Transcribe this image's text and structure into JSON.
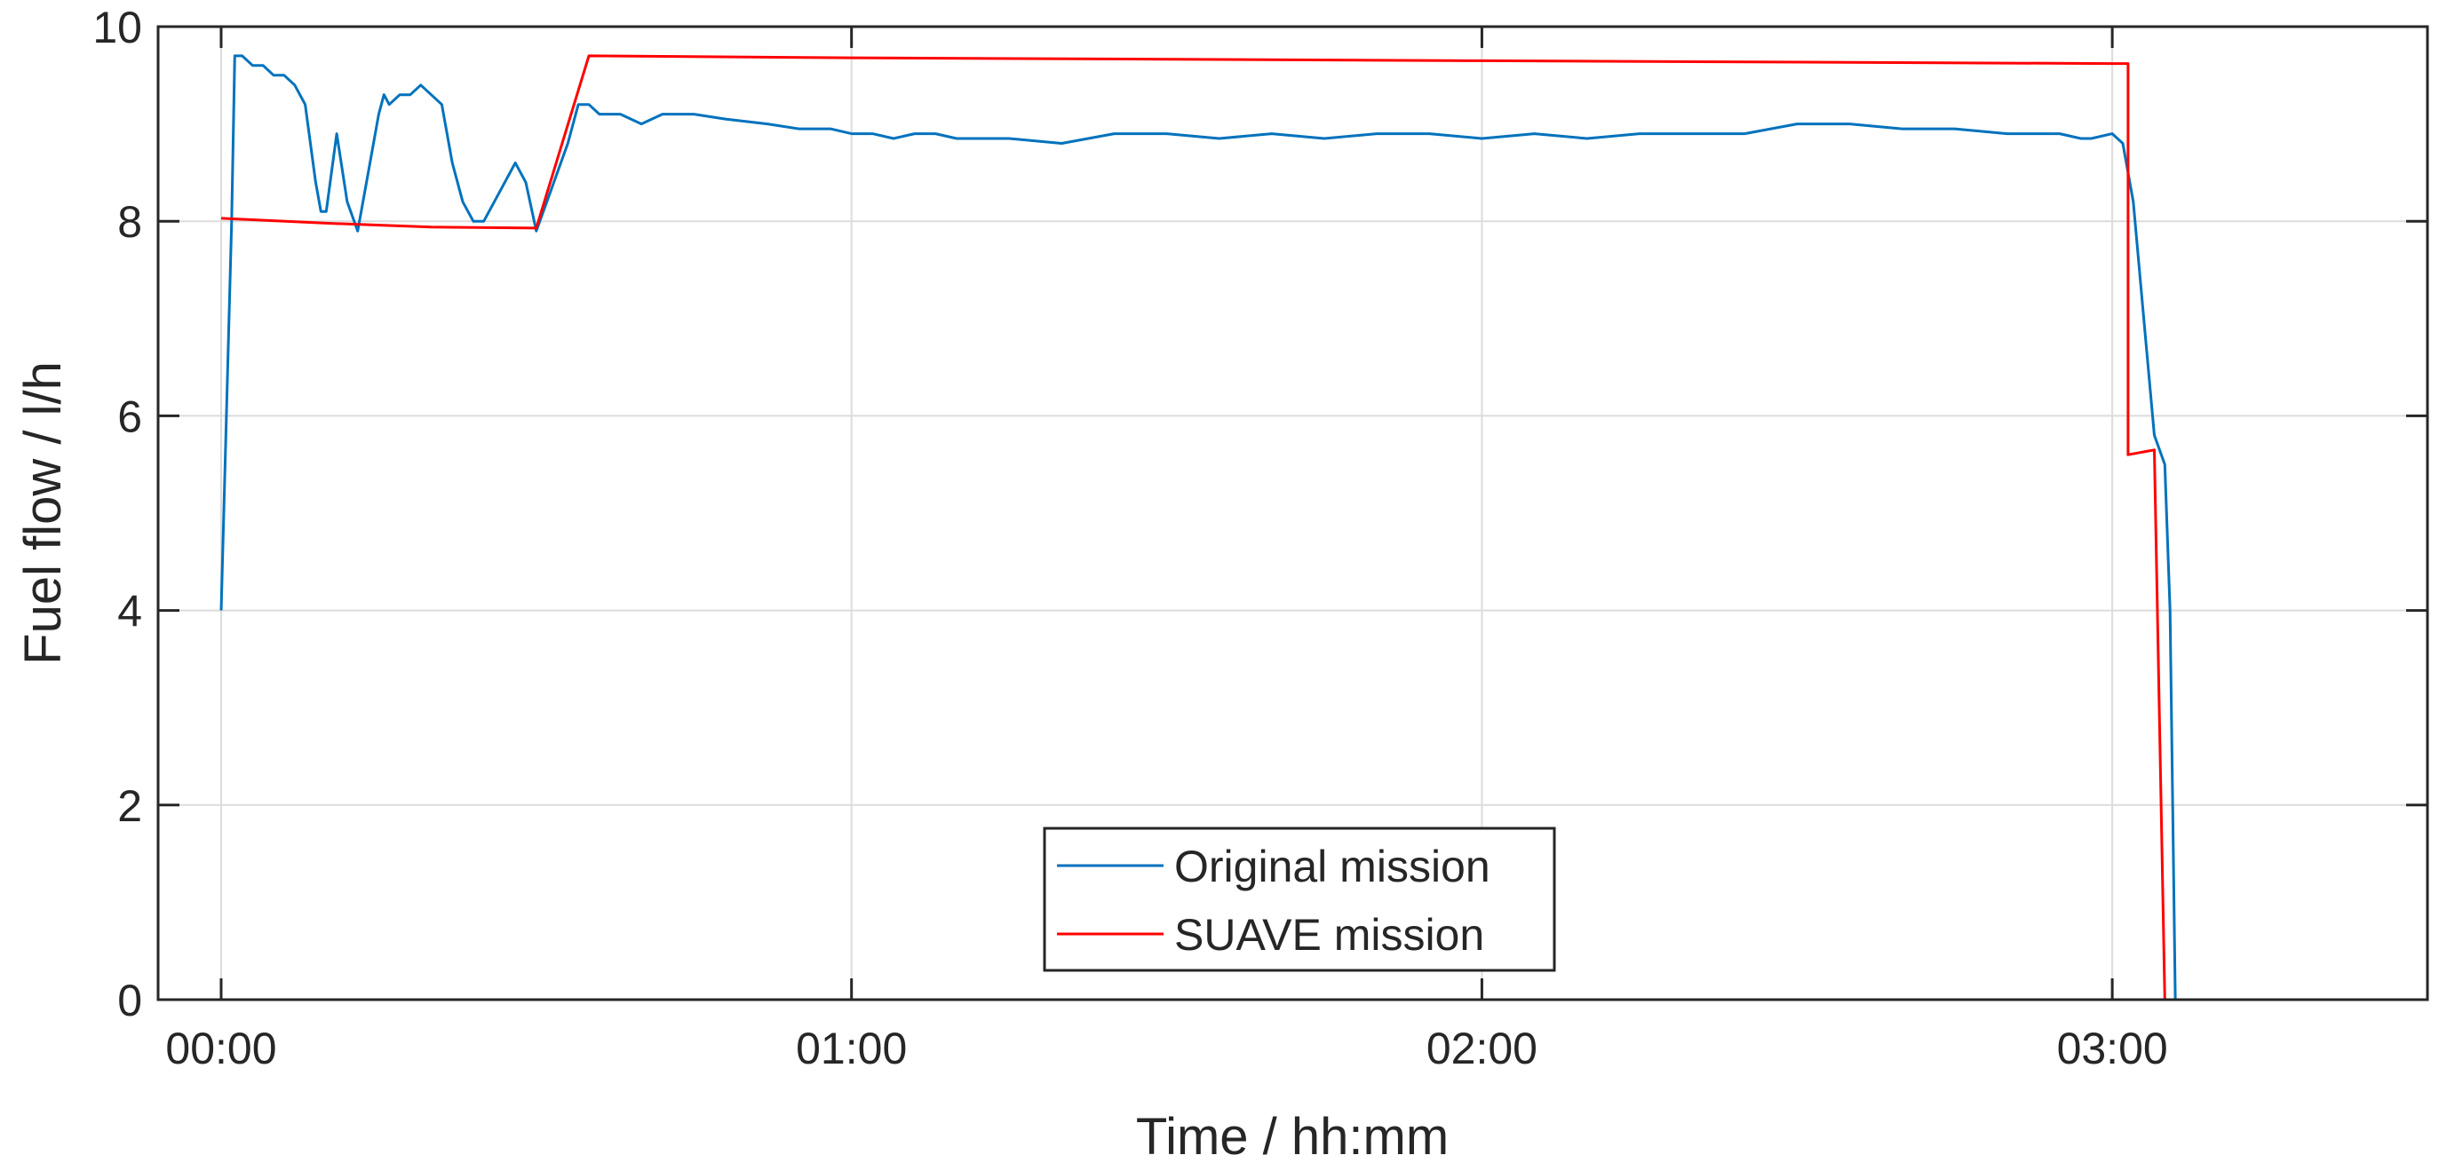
{
  "chart_data": {
    "type": "line",
    "title": "",
    "xlabel": "Time / hh:mm",
    "ylabel": "Fuel flow / l/h",
    "xlim": [
      -6,
      210
    ],
    "ylim": [
      0,
      10
    ],
    "x_unit": "minutes",
    "x_ticks": [
      {
        "value": 0,
        "label": "00:00"
      },
      {
        "value": 60,
        "label": "01:00"
      },
      {
        "value": 120,
        "label": "02:00"
      },
      {
        "value": 180,
        "label": "03:00"
      }
    ],
    "y_ticks": [
      {
        "value": 0,
        "label": "0"
      },
      {
        "value": 2,
        "label": "2"
      },
      {
        "value": 4,
        "label": "4"
      },
      {
        "value": 6,
        "label": "6"
      },
      {
        "value": 8,
        "label": "8"
      },
      {
        "value": 10,
        "label": "10"
      }
    ],
    "grid": true,
    "legend_position": "bottom-center",
    "series": [
      {
        "name": "Original mission",
        "color": "#0072bd",
        "x": [
          0,
          1,
          1.3,
          2,
          3,
          4,
          5,
          6,
          7,
          8,
          9,
          9.5,
          10,
          11,
          12,
          13,
          14,
          15,
          15.5,
          16,
          17,
          18,
          19,
          20,
          21,
          22,
          23,
          24,
          25,
          25.5,
          26,
          27,
          28,
          29,
          30,
          31,
          32,
          33,
          34,
          35,
          36,
          37,
          38,
          40,
          42,
          45,
          48,
          52,
          55,
          58,
          60,
          62,
          64,
          66,
          68,
          70,
          75,
          80,
          85,
          90,
          95,
          100,
          105,
          110,
          115,
          120,
          125,
          130,
          135,
          140,
          145,
          150,
          155,
          160,
          165,
          170,
          175,
          177,
          178,
          180,
          181,
          182,
          183,
          184,
          185,
          185.5,
          186,
          187,
          197,
          205,
          206
        ],
        "y": [
          4.0,
          8.0,
          9.7,
          9.7,
          9.6,
          9.6,
          9.5,
          9.5,
          9.4,
          9.2,
          8.4,
          8.1,
          8.1,
          8.9,
          8.2,
          7.9,
          8.5,
          9.1,
          9.3,
          9.2,
          9.3,
          9.3,
          9.4,
          9.3,
          9.2,
          8.6,
          8.2,
          8.0,
          8.0,
          8.1,
          8.2,
          8.4,
          8.6,
          8.4,
          7.9,
          8.2,
          8.5,
          8.8,
          9.2,
          9.2,
          9.1,
          9.1,
          9.1,
          9.0,
          9.1,
          9.1,
          9.05,
          9.0,
          8.95,
          8.95,
          8.9,
          8.9,
          8.85,
          8.9,
          8.9,
          8.85,
          8.85,
          8.8,
          8.9,
          8.9,
          8.85,
          8.9,
          8.85,
          8.9,
          8.9,
          8.85,
          8.9,
          8.85,
          8.9,
          8.9,
          8.9,
          9.0,
          9.0,
          8.95,
          8.95,
          8.9,
          8.9,
          8.85,
          8.85,
          8.9,
          8.8,
          8.2,
          7.0,
          5.8,
          5.5,
          4.0,
          0.0,
          0.0,
          0.0,
          0.0,
          0.0
        ]
      },
      {
        "name": "SUAVE mission",
        "color": "#ff0000",
        "x": [
          0,
          10,
          20,
          30,
          30,
          35,
          60,
          120,
          180,
          181.5,
          181.5,
          184,
          184,
          185,
          185.5,
          203
        ],
        "y": [
          8.03,
          7.98,
          7.94,
          7.93,
          7.93,
          9.7,
          9.68,
          9.65,
          9.62,
          9.62,
          5.6,
          5.65,
          5.65,
          0.0,
          0.0,
          0.0
        ]
      }
    ]
  }
}
